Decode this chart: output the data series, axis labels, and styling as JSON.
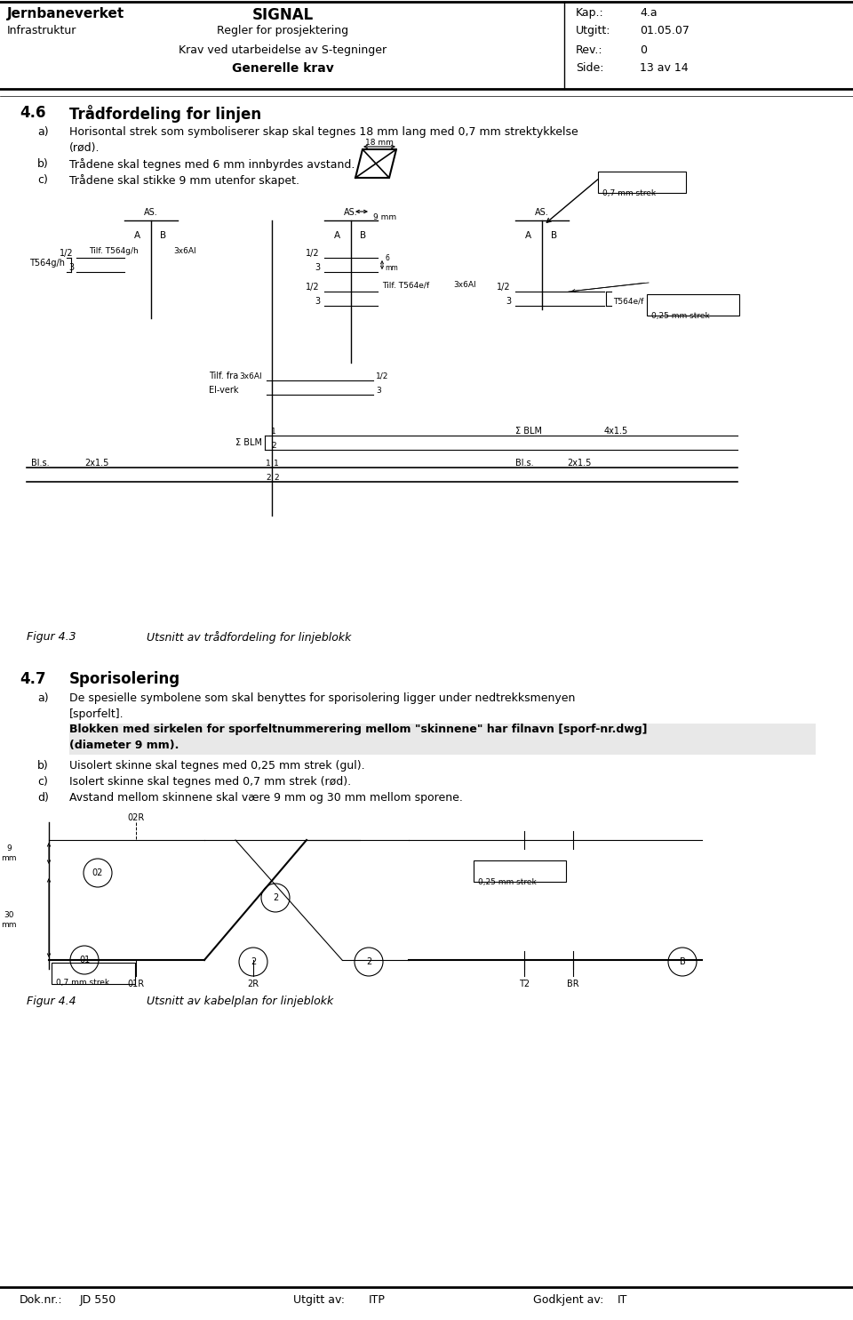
{
  "title_left": "Jernbaneverket",
  "title_center": "SIGNAL",
  "kap_label": "Kap.:",
  "kap_value": "4.a",
  "infra_left": "Infrastruktur",
  "infra_center": "Regler for prosjektering",
  "utgitt_label": "Utgitt:",
  "utgitt_value": "01.05.07",
  "line2_center": "Krav ved utarbeidelse av S-tegninger",
  "rev_label": "Rev.:",
  "rev_value": "0",
  "line3_center": "Generelle krav",
  "side_label": "Side:",
  "side_value": "13 av 14",
  "section_46_num": "4.6",
  "section_46_title": "Trådfordeling for linjen",
  "item_a_46_l1": "Horisontal strek som symboliserer skap skal tegnes 18 mm lang med 0,7 mm strektykkelse",
  "item_a_46_l2": "(rød).",
  "item_b_46": "Trådene skal tegnes med 6 mm innbyrdes avstand.",
  "item_c_46": "Trådene skal stikke 9 mm utenfor skapet.",
  "fig43_label": "Figur 4.3",
  "fig43_caption": "Utsnitt av trådfordeling for linjeblokk",
  "section_47_num": "4.7",
  "section_47_title": "Sporisolering",
  "item_a_47_l1": "De spesielle symbolene som skal benyttes for sporisolering ligger under nedtrekksmenyen",
  "item_a_47_l2": "[sporfelt].",
  "item_a_47_l3": "Blokken med sirkelen for sporfeltnummerering mellom \"skinnene\" har filnavn [sporf-nr.dwg]",
  "item_a_47_l4": "(diameter 9 mm).",
  "item_b_47": "Uisolert skinne skal tegnes med 0,25 mm strek (gul).",
  "item_c_47": "Isolert skinne skal tegnes med 0,7 mm strek (rød).",
  "item_d_47": "Avstand mellom skinnene skal være 9 mm og 30 mm mellom sporene.",
  "fig44_label": "Figur 4.4",
  "fig44_caption": "Utsnitt av kabelplan for linjeblokk",
  "footer_dok": "Dok.nr.:",
  "footer_dok_val": "JD 550",
  "footer_utgitt": "Utgitt av:",
  "footer_utgitt_val": "ITP",
  "footer_godkjent": "Godkjent av:",
  "footer_godkjent_val": "IT",
  "bg_color": "#ffffff",
  "text_color": "#000000",
  "line_color": "#000000"
}
